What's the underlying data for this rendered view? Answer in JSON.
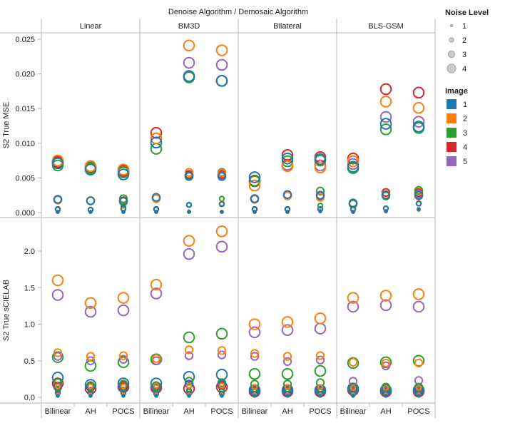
{
  "chart_data": {
    "type": "scatter",
    "title": "Denoise Algorithm  /  Demosaic Algorithm",
    "column_facets": [
      "Linear",
      "BM3D",
      "Bilateral",
      "BLS-GSM"
    ],
    "x_categories": [
      "Bilinear",
      "AH",
      "POCS"
    ],
    "rows": [
      {
        "key": "mse",
        "ylabel": "S2 True MSE",
        "ylim": [
          0,
          0.025
        ],
        "ticks": [
          "0.000",
          "0.005",
          "0.010",
          "0.015",
          "0.020",
          "0.025"
        ],
        "tick_values": [
          0,
          0.005,
          0.01,
          0.015,
          0.02,
          0.025
        ]
      },
      {
        "key": "scielab",
        "ylabel": "S2 True sCIELAB",
        "ylim": [
          0,
          2.0
        ],
        "ticks": [
          "0.0",
          "0.5",
          "1.0",
          "1.5",
          "2.0"
        ],
        "tick_values": [
          0,
          0.5,
          1.0,
          1.5,
          2.0
        ]
      }
    ],
    "size_legend": {
      "title": "Noise Level",
      "levels": [
        "1",
        "2",
        "3",
        "4"
      ]
    },
    "color_legend": {
      "title": "Image",
      "items": [
        {
          "label": "1",
          "color": "#1f77b4"
        },
        {
          "label": "2",
          "color": "#ff7f0e"
        },
        {
          "label": "3",
          "color": "#2ca02c"
        },
        {
          "label": "4",
          "color": "#d62728"
        },
        {
          "label": "5",
          "color": "#9467bd"
        }
      ]
    },
    "note": "values indexed [image 1..5][noise level 1..4]",
    "data": {
      "Linear": {
        "Bilinear": {
          "mse": [
            [
              0.0001,
              0.0005,
              0.0019,
              0.0071
            ],
            [
              0.0001,
              0.0004,
              0.0018,
              0.0075
            ],
            [
              0.0001,
              0.0005,
              0.0019,
              0.0068
            ],
            [
              0.0001,
              0.0005,
              0.0019,
              0.0073
            ],
            [
              0.0001,
              0.0005,
              0.0019,
              0.0072
            ]
          ],
          "scielab": [
            [
              0.02,
              0.06,
              0.14,
              0.27
            ],
            [
              0.04,
              0.15,
              0.61,
              1.6
            ],
            [
              0.03,
              0.08,
              0.2,
              0.55
            ],
            [
              0.03,
              0.1,
              0.15,
              0.19
            ],
            [
              0.03,
              0.1,
              0.56,
              1.4
            ]
          ]
        },
        "AH": {
          "mse": [
            [
              0.0001,
              0.0004,
              0.0017,
              0.0062
            ],
            [
              0.0001,
              0.0004,
              0.0017,
              0.0067
            ],
            [
              0.0001,
              0.0004,
              0.0017,
              0.0064
            ],
            [
              0.0001,
              0.0004,
              0.0017,
              0.0066
            ],
            [
              0.0001,
              0.0004,
              0.0017,
              0.0065
            ]
          ],
          "scielab": [
            [
              0.02,
              0.06,
              0.13,
              0.17
            ],
            [
              0.04,
              0.15,
              0.56,
              1.29
            ],
            [
              0.03,
              0.08,
              0.16,
              0.43
            ],
            [
              0.03,
              0.1,
              0.14,
              0.12
            ],
            [
              0.03,
              0.1,
              0.5,
              1.17
            ]
          ]
        },
        "POCS": {
          "mse": [
            [
              0.0001,
              0.0006,
              0.0016,
              0.0055
            ],
            [
              0.0001,
              0.0005,
              0.0016,
              0.0062
            ],
            [
              0.0001,
              0.001,
              0.002,
              0.0058
            ],
            [
              0.0001,
              0.0005,
              0.0017,
              0.006
            ],
            [
              0.0001,
              0.0005,
              0.0017,
              0.0059
            ]
          ],
          "scielab": [
            [
              0.02,
              0.06,
              0.13,
              0.19
            ],
            [
              0.04,
              0.15,
              0.57,
              1.36
            ],
            [
              0.03,
              0.08,
              0.18,
              0.48
            ],
            [
              0.03,
              0.1,
              0.14,
              0.14
            ],
            [
              0.03,
              0.1,
              0.52,
              1.19
            ]
          ]
        }
      },
      "BM3D": {
        "Bilinear": {
          "mse": [
            [
              0.0001,
              0.0005,
              0.0022,
              0.0101
            ],
            [
              0.0001,
              0.0004,
              0.002,
              0.0107
            ],
            [
              0.0001,
              0.0005,
              0.0021,
              0.0092
            ],
            [
              0.0001,
              0.0005,
              0.0021,
              0.0115
            ],
            [
              0.0001,
              0.0005,
              0.0021,
              0.0107
            ]
          ],
          "scielab": [
            [
              0.02,
              0.05,
              0.12,
              0.19
            ],
            [
              0.04,
              0.16,
              0.53,
              1.54
            ],
            [
              0.03,
              0.08,
              0.16,
              0.52
            ],
            [
              0.03,
              0.09,
              0.14,
              0.13
            ],
            [
              0.03,
              0.1,
              0.5,
              1.42
            ]
          ]
        },
        "AH": {
          "mse": [
            [
              0.0001,
              0.0011,
              0.0053,
              0.0197
            ],
            [
              0.0002,
              0.0011,
              0.0058,
              0.0241
            ],
            [
              0.0001,
              0.0011,
              0.0052,
              0.0195
            ],
            [
              0.0001,
              0.0011,
              0.0055,
              0.0196
            ],
            [
              0.0001,
              0.0011,
              0.0054,
              0.0216
            ]
          ],
          "scielab": [
            [
              0.02,
              0.05,
              0.18,
              0.28
            ],
            [
              0.04,
              0.16,
              0.65,
              2.14
            ],
            [
              0.03,
              0.08,
              0.22,
              0.82
            ],
            [
              0.03,
              0.09,
              0.18,
              0.12
            ],
            [
              0.03,
              0.1,
              0.57,
              1.96
            ]
          ]
        },
        "POCS": {
          "mse": [
            [
              0.0001,
              0.0012,
              0.0052,
              0.019
            ],
            [
              0.0001,
              0.0013,
              0.0057,
              0.0234
            ],
            [
              0.0001,
              0.002,
              0.0058,
              0.019
            ],
            [
              0.0001,
              0.0013,
              0.0055,
              0.019
            ],
            [
              0.0001,
              0.0013,
              0.0054,
              0.0213
            ]
          ],
          "scielab": [
            [
              0.02,
              0.05,
              0.18,
              0.31
            ],
            [
              0.04,
              0.16,
              0.64,
              2.27
            ],
            [
              0.03,
              0.08,
              0.2,
              0.87
            ],
            [
              0.03,
              0.09,
              0.16,
              0.14
            ],
            [
              0.03,
              0.1,
              0.58,
              2.06
            ]
          ]
        }
      },
      "Bilateral": {
        "Bilinear": {
          "mse": [
            [
              0.0001,
              0.0005,
              0.002,
              0.0051
            ],
            [
              0.0001,
              0.0004,
              0.0019,
              0.0039
            ],
            [
              0.0001,
              0.0005,
              0.002,
              0.0045
            ],
            [
              0.0001,
              0.0005,
              0.002,
              0.0046
            ],
            [
              0.0001,
              0.0005,
              0.002,
              0.0045
            ]
          ],
          "scielab": [
            [
              0.02,
              0.05,
              0.09,
              0.1
            ],
            [
              0.04,
              0.14,
              0.6,
              1.0
            ],
            [
              0.03,
              0.08,
              0.18,
              0.32
            ],
            [
              0.03,
              0.08,
              0.1,
              0.08
            ],
            [
              0.03,
              0.09,
              0.56,
              0.89
            ]
          ]
        },
        "AH": {
          "mse": [
            [
              0.0001,
              0.0005,
              0.0026,
              0.0078
            ],
            [
              0.0001,
              0.0004,
              0.0024,
              0.0067
            ],
            [
              0.0001,
              0.0005,
              0.0025,
              0.0074
            ],
            [
              0.0001,
              0.0005,
              0.0025,
              0.0083
            ],
            [
              0.0001,
              0.0005,
              0.0025,
              0.0069
            ]
          ],
          "scielab": [
            [
              0.02,
              0.05,
              0.09,
              0.1
            ],
            [
              0.04,
              0.14,
              0.56,
              1.03
            ],
            [
              0.03,
              0.08,
              0.18,
              0.32
            ],
            [
              0.03,
              0.08,
              0.1,
              0.08
            ],
            [
              0.03,
              0.09,
              0.49,
              0.92
            ]
          ]
        },
        "POCS": {
          "mse": [
            [
              0.0002,
              0.0005,
              0.0025,
              0.0077
            ],
            [
              0.0002,
              0.0005,
              0.0022,
              0.0065
            ],
            [
              0.0002,
              0.001,
              0.0031,
              0.0075
            ],
            [
              0.0002,
              0.0005,
              0.0025,
              0.008
            ],
            [
              0.0002,
              0.0005,
              0.0024,
              0.0068
            ]
          ],
          "scielab": [
            [
              0.02,
              0.05,
              0.09,
              0.1
            ],
            [
              0.04,
              0.14,
              0.57,
              1.08
            ],
            [
              0.03,
              0.08,
              0.2,
              0.36
            ],
            [
              0.03,
              0.08,
              0.1,
              0.08
            ],
            [
              0.03,
              0.09,
              0.51,
              0.94
            ]
          ]
        }
      },
      "BLS-GSM": {
        "Bilinear": {
          "mse": [
            [
              0.0001,
              0.0005,
              0.0013,
              0.0066
            ],
            [
              0.0001,
              0.0004,
              0.0012,
              0.0074
            ],
            [
              0.0001,
              0.0005,
              0.0014,
              0.0064
            ],
            [
              0.0001,
              0.0005,
              0.0013,
              0.0078
            ],
            [
              0.0001,
              0.0005,
              0.0013,
              0.007
            ]
          ],
          "scielab": [
            [
              0.02,
              0.05,
              0.09,
              0.12
            ],
            [
              0.04,
              0.13,
              0.48,
              1.36
            ],
            [
              0.03,
              0.07,
              0.12,
              0.47
            ],
            [
              0.03,
              0.08,
              0.1,
              0.1
            ],
            [
              0.03,
              0.09,
              0.22,
              1.24
            ]
          ]
        },
        "AH": {
          "mse": [
            [
              0.0002,
              0.0006,
              0.0025,
              0.0128
            ],
            [
              0.0002,
              0.0006,
              0.0026,
              0.016
            ],
            [
              0.0002,
              0.0006,
              0.0024,
              0.012
            ],
            [
              0.0002,
              0.0006,
              0.0029,
              0.0178
            ],
            [
              0.0002,
              0.0006,
              0.0026,
              0.0138
            ]
          ],
          "scielab": [
            [
              0.02,
              0.05,
              0.09,
              0.1
            ],
            [
              0.04,
              0.13,
              0.47,
              1.39
            ],
            [
              0.03,
              0.07,
              0.14,
              0.48
            ],
            [
              0.03,
              0.08,
              0.1,
              0.08
            ],
            [
              0.03,
              0.09,
              0.43,
              1.26
            ]
          ]
        },
        "POCS": {
          "mse": [
            [
              0.0005,
              0.0013,
              0.0025,
              0.0124
            ],
            [
              0.0004,
              0.0013,
              0.0024,
              0.0151
            ],
            [
              0.0004,
              0.0013,
              0.0032,
              0.0122
            ],
            [
              0.0005,
              0.0013,
              0.0029,
              0.0173
            ],
            [
              0.0004,
              0.0013,
              0.0027,
              0.0131
            ]
          ],
          "scielab": [
            [
              0.02,
              0.05,
              0.09,
              0.1
            ],
            [
              0.04,
              0.13,
              0.47,
              1.41
            ],
            [
              0.03,
              0.07,
              0.14,
              0.5
            ],
            [
              0.03,
              0.08,
              0.1,
              0.08
            ],
            [
              0.03,
              0.09,
              0.23,
              1.24
            ]
          ]
        }
      }
    }
  }
}
